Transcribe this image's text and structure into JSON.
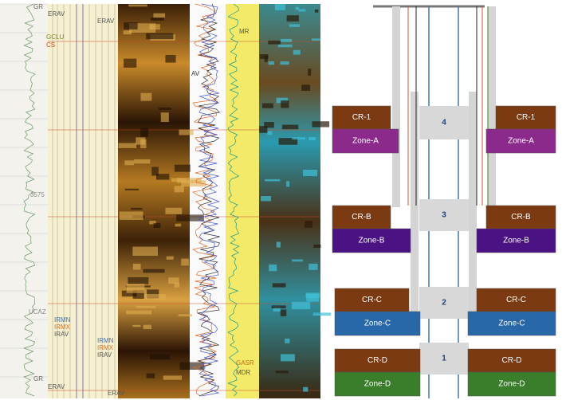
{
  "log_panel": {
    "labels": [
      "GR",
      "ERAV",
      "GCLU",
      "CS",
      "ERAV",
      "AV",
      "MR",
      "3575",
      "UCAZ",
      "IRMN",
      "IRMX",
      "IRAV",
      "IRMN",
      "IRMX",
      "IRAV",
      "GASR",
      "MDR",
      "GR",
      "ERAV",
      "ERAV"
    ]
  },
  "completion": {
    "stages": [
      {
        "number": 4,
        "left": {
          "cr": "CR-1",
          "zone": "Zone-A"
        },
        "right": {
          "cr": "CR-1",
          "zone": "Zone-A"
        }
      },
      {
        "number": 3,
        "left": {
          "cr": "CR-B",
          "zone": "Zone-B"
        },
        "right": {
          "cr": "CR-B",
          "zone": "Zone-B"
        }
      },
      {
        "number": 2,
        "left": {
          "cr": "CR-C",
          "zone": "Zone-C"
        },
        "right": {
          "cr": "CR-C",
          "zone": "Zone-C"
        }
      },
      {
        "number": 1,
        "left": {
          "cr": "CR-D",
          "zone": "Zone-D"
        },
        "right": {
          "cr": "CR-D",
          "zone": "Zone-D"
        }
      }
    ]
  }
}
